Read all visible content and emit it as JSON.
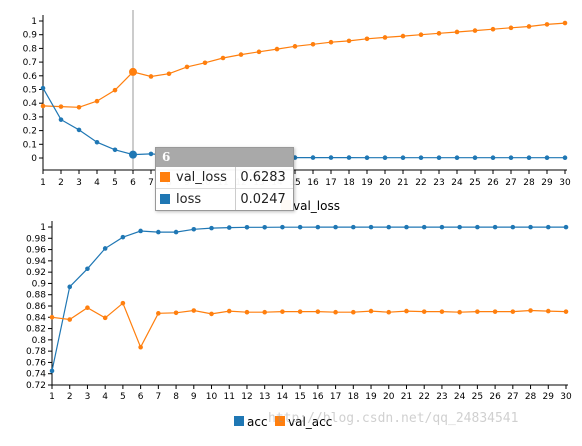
{
  "colors": {
    "orange": "#ff7f0e",
    "blue": "#1f77b4",
    "axis": "#000000",
    "grid": "#dddddd",
    "crosshair": "#999999"
  },
  "tooltip": {
    "header": "6",
    "rows": [
      {
        "label": "val_loss",
        "value": "0.6283",
        "color": "#ff7f0e"
      },
      {
        "label": "loss",
        "value": "0.0247",
        "color": "#1f77b4"
      }
    ]
  },
  "watermark": "http://blog.csdn.net/qq_24834541",
  "chart_data": [
    {
      "type": "line",
      "x": [
        1,
        2,
        3,
        4,
        5,
        6,
        7,
        8,
        9,
        10,
        11,
        12,
        13,
        14,
        15,
        16,
        17,
        18,
        19,
        20,
        21,
        22,
        23,
        24,
        25,
        26,
        27,
        28,
        29,
        30
      ],
      "ylim": [
        0,
        1
      ],
      "yticks": [
        "0",
        "0.1",
        "0.2",
        "0.3",
        "0.4",
        "0.5",
        "0.6",
        "0.7",
        "0.8",
        "0.9",
        "1"
      ],
      "xticks": [
        "1",
        "2",
        "3",
        "4",
        "5",
        "6",
        "7",
        "8",
        "9",
        "10",
        "11",
        "12",
        "13",
        "14",
        "15",
        "16",
        "17",
        "18",
        "19",
        "20",
        "21",
        "22",
        "23",
        "24",
        "25",
        "26",
        "27",
        "28",
        "29",
        "30"
      ],
      "highlight_x": 6,
      "series": [
        {
          "name": "val_loss",
          "color": "#ff7f0e",
          "values": [
            0.38,
            0.375,
            0.37,
            0.415,
            0.495,
            0.6283,
            0.595,
            0.615,
            0.665,
            0.695,
            0.73,
            0.755,
            0.775,
            0.795,
            0.815,
            0.83,
            0.845,
            0.855,
            0.87,
            0.88,
            0.89,
            0.9,
            0.91,
            0.92,
            0.93,
            0.94,
            0.95,
            0.96,
            0.975,
            0.985
          ]
        },
        {
          "name": "loss",
          "color": "#1f77b4",
          "values": [
            0.51,
            0.28,
            0.205,
            0.115,
            0.06,
            0.0247,
            0.03,
            0.02,
            0.012,
            0.008,
            0.006,
            0.005,
            0.004,
            0.004,
            0.003,
            0.003,
            0.003,
            0.003,
            0.002,
            0.002,
            0.002,
            0.002,
            0.002,
            0.002,
            0.002,
            0.002,
            0.002,
            0.002,
            0.002,
            0.002
          ]
        }
      ],
      "legend": [
        "val_loss"
      ]
    },
    {
      "type": "line",
      "x": [
        1,
        2,
        3,
        4,
        5,
        6,
        7,
        8,
        9,
        10,
        11,
        12,
        13,
        14,
        15,
        16,
        17,
        18,
        19,
        20,
        21,
        22,
        23,
        24,
        25,
        26,
        27,
        28,
        29,
        30
      ],
      "ylim": [
        0.72,
        1
      ],
      "yticks": [
        "0.72",
        "0.74",
        "0.76",
        "0.78",
        "0.8",
        "0.82",
        "0.84",
        "0.86",
        "0.88",
        "0.9",
        "0.92",
        "0.94",
        "0.96",
        "0.98",
        "1"
      ],
      "xticks": [
        "1",
        "2",
        "3",
        "4",
        "5",
        "6",
        "7",
        "8",
        "9",
        "10",
        "11",
        "12",
        "13",
        "14",
        "15",
        "16",
        "17",
        "18",
        "19",
        "20",
        "21",
        "22",
        "23",
        "24",
        "25",
        "26",
        "27",
        "28",
        "29",
        "30"
      ],
      "series": [
        {
          "name": "acc",
          "color": "#1f77b4",
          "values": [
            0.745,
            0.894,
            0.926,
            0.962,
            0.982,
            0.993,
            0.991,
            0.991,
            0.996,
            0.998,
            0.999,
            0.9995,
            0.9995,
            0.9997,
            0.9997,
            0.9998,
            0.9998,
            0.9998,
            0.9998,
            0.9998,
            0.9998,
            0.9998,
            0.9998,
            0.9998,
            0.9998,
            0.9998,
            0.9998,
            0.9998,
            0.9998,
            0.9998
          ]
        },
        {
          "name": "val_acc",
          "color": "#ff7f0e",
          "values": [
            0.84,
            0.836,
            0.857,
            0.839,
            0.865,
            0.787,
            0.847,
            0.848,
            0.852,
            0.846,
            0.851,
            0.849,
            0.849,
            0.85,
            0.85,
            0.85,
            0.849,
            0.849,
            0.851,
            0.849,
            0.851,
            0.85,
            0.85,
            0.849,
            0.85,
            0.85,
            0.85,
            0.852,
            0.851,
            0.85
          ]
        }
      ],
      "legend": [
        "acc",
        "val_acc"
      ]
    }
  ]
}
